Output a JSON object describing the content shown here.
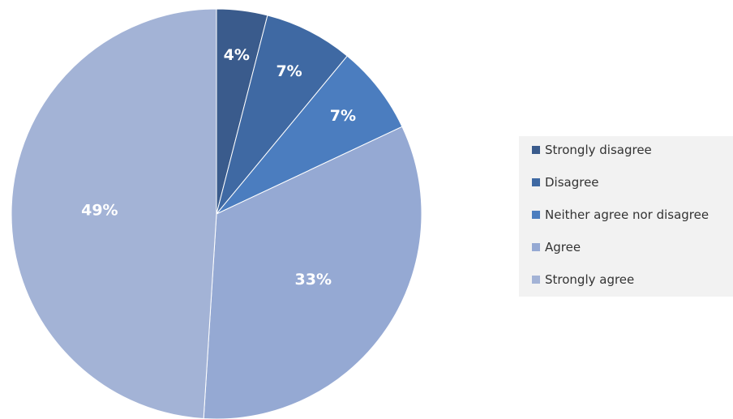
{
  "chart_data": {
    "type": "pie",
    "categories": [
      "Strongly disagree",
      "Disagree",
      "Neither agree nor disagree",
      "Agree",
      "Strongly agree"
    ],
    "values": [
      4,
      7,
      7,
      33,
      49
    ],
    "data_labels": [
      "4%",
      "7%",
      "7%",
      "33%",
      "49%"
    ],
    "colors": [
      "#3a5b8c",
      "#3f69a3",
      "#4b7dbf",
      "#95a9d3",
      "#a3b3d6"
    ],
    "start_angle": "12 o'clock, clockwise",
    "legend_position": "right"
  }
}
